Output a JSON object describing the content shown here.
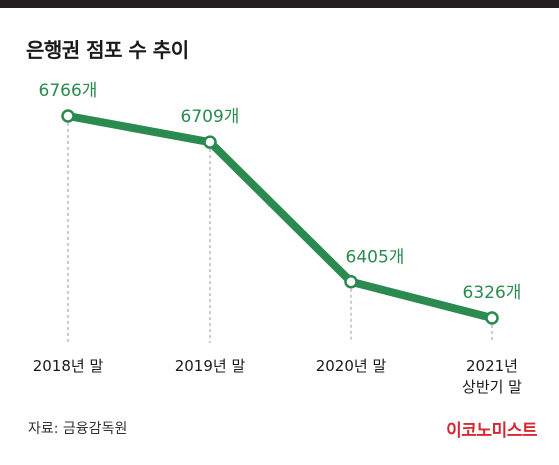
{
  "header": {
    "title": "은행권 점포 수 추이"
  },
  "footer": {
    "source": "자료: 금융감독원",
    "brand": "이코노미스트"
  },
  "colors": {
    "line": "#2a8a4f",
    "label": "#2a8a4f",
    "guide": "#9a9a9a",
    "axis_text": "#1a1a1a"
  },
  "chart_data": {
    "type": "line",
    "title": "은행권 점포 수 추이",
    "xlabel": "",
    "ylabel": "",
    "categories": [
      [
        "2018년 말"
      ],
      [
        "2019년 말"
      ],
      [
        "2020년 말"
      ],
      [
        "2021년",
        "상반기 말"
      ]
    ],
    "values": [
      6766,
      6709,
      6405,
      6326
    ],
    "data_labels": [
      "6766개",
      "6709개",
      "6405개",
      "6326개"
    ],
    "ylim": [
      6290,
      6800
    ],
    "grid": false
  }
}
